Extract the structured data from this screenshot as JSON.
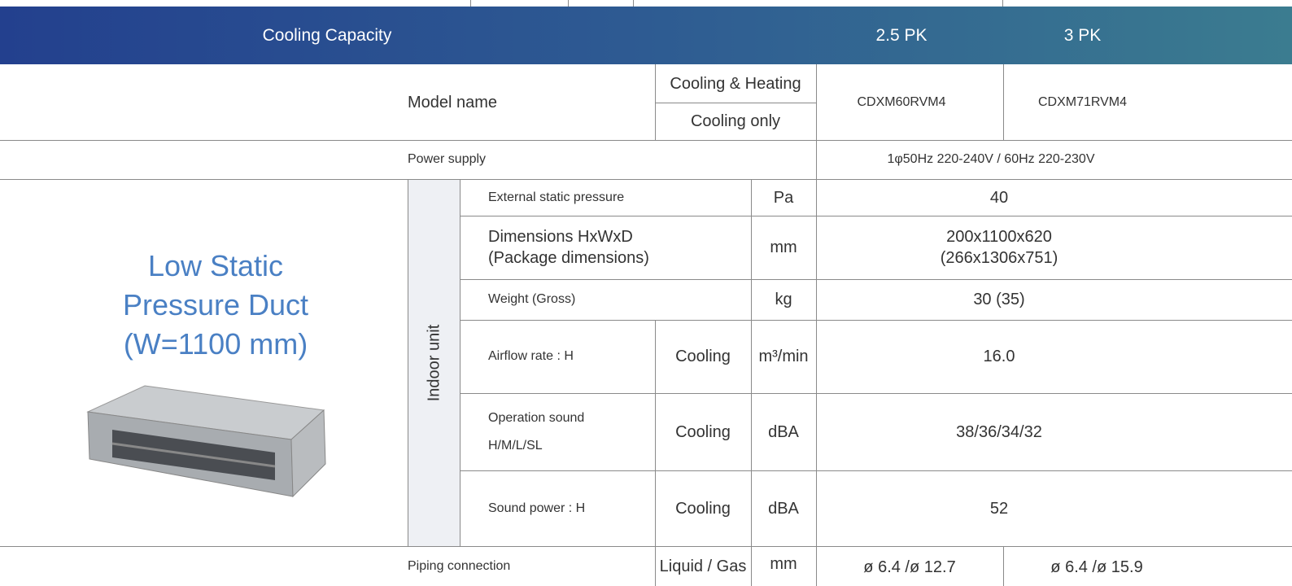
{
  "header": {
    "title": "Cooling Capacity",
    "columns": [
      "2.5 PK",
      "3 PK"
    ]
  },
  "model": {
    "label": "Model name",
    "variants": [
      "Cooling & Heating",
      "Cooling only"
    ],
    "values": [
      "CDXM60RVM4",
      "CDXM71RVM4"
    ]
  },
  "power": {
    "label": "Power supply",
    "value": "1φ50Hz 220-240V / 60Hz 220-230V"
  },
  "product": {
    "name": [
      "Low Static",
      "Pressure Duct",
      "(W=1100 mm)"
    ],
    "section": "Indoor unit"
  },
  "rows": [
    {
      "label": [
        "External static pressure"
      ],
      "unit": "Pa",
      "value": [
        "40"
      ]
    },
    {
      "label": [
        "Dimensions HxWxD",
        "(Package dimensions)"
      ],
      "unit": "mm",
      "value": [
        "200x1100x620",
        "(266x1306x751)"
      ]
    },
    {
      "label": [
        "Weight (Gross)"
      ],
      "unit": "kg",
      "value": [
        "30 (35)"
      ]
    },
    {
      "label": [
        "Airflow rate : H"
      ],
      "mode": "Cooling",
      "unit": "m³/min",
      "value": [
        "16.0"
      ]
    },
    {
      "label": [
        "Operation sound",
        "H/M/L/SL"
      ],
      "mode": "Cooling",
      "unit": "dBA",
      "value": [
        "38/36/34/32"
      ]
    },
    {
      "label": [
        "Sound power : H"
      ],
      "mode": "Cooling",
      "unit": "dBA",
      "value": [
        "52"
      ]
    }
  ],
  "piping": {
    "label": "Piping connection",
    "mode": "Liquid / Gas",
    "unit": "mm",
    "values": [
      "ø 6.4 /ø 12.7",
      "ø 6.4 /ø 15.9"
    ]
  }
}
